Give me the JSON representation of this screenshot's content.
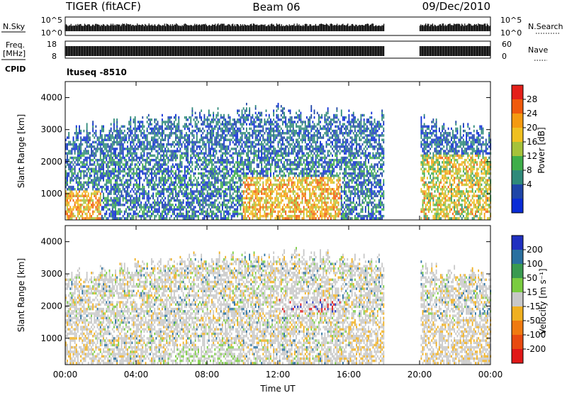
{
  "header": {
    "radar_title": "TIGER (fitACF)",
    "beam_label": "Beam 06",
    "date_label": "09/Dec/2010"
  },
  "status_panels": {
    "nsky_label": "N.Sky",
    "nsearch_label": "N.Search",
    "nsky_ticks": [
      "10^5",
      "10^0"
    ],
    "nsearch_ticks": [
      "10^5",
      "10^0"
    ],
    "freq_label_line1": "Freq.",
    "freq_label_line2": "[MHz]",
    "freq_ticks": [
      "18",
      "8"
    ],
    "nave_ticks": [
      "60",
      "0"
    ],
    "nave_label": "Nave",
    "cpid_label": "CPID",
    "cpid_value": "ltuseq -8510"
  },
  "chart_data": [
    {
      "type": "heatmap",
      "name": "power",
      "ylabel": "Slant Range [km]",
      "xlabel": "",
      "ylim": [
        180,
        4500
      ],
      "yticks": [
        1000,
        2000,
        3000,
        4000
      ],
      "xticks": [
        "00:00",
        "04:00",
        "08:00",
        "12:00",
        "16:00",
        "20:00",
        "00:00"
      ],
      "xlim_hours": [
        0,
        24
      ],
      "data_gap_hours": [
        18,
        20
      ],
      "colorbar": {
        "label": "Power [dB]",
        "ticks": [
          "4",
          "8",
          "12",
          "16",
          "20",
          "24",
          "28"
        ],
        "colors": [
          "#0a2cd6",
          "#1f46a8",
          "#2f8a7a",
          "#3fae4a",
          "#a6c23a",
          "#f0c020",
          "#f59a10",
          "#f05a0c",
          "#e4201a"
        ]
      }
    },
    {
      "type": "heatmap",
      "name": "velocity",
      "ylabel": "Slant Range [km]",
      "xlabel": "Time UT",
      "ylim": [
        180,
        4500
      ],
      "yticks": [
        1000,
        2000,
        3000,
        4000
      ],
      "xticks": [
        "00:00",
        "04:00",
        "08:00",
        "12:00",
        "16:00",
        "20:00",
        "00:00"
      ],
      "xlim_hours": [
        0,
        24
      ],
      "data_gap_hours": [
        18,
        20
      ],
      "colorbar": {
        "label": "Velocity [m s⁻¹]",
        "ticks": [
          "200",
          "100",
          "50",
          "15",
          "-15",
          "-50",
          "-100",
          "-200"
        ],
        "colors": [
          "#2030c0",
          "#2a70a0",
          "#3a9a50",
          "#7acc40",
          "#c8c8c8",
          "#f0b020",
          "#f07a10",
          "#e84a10",
          "#e01818"
        ]
      }
    }
  ]
}
